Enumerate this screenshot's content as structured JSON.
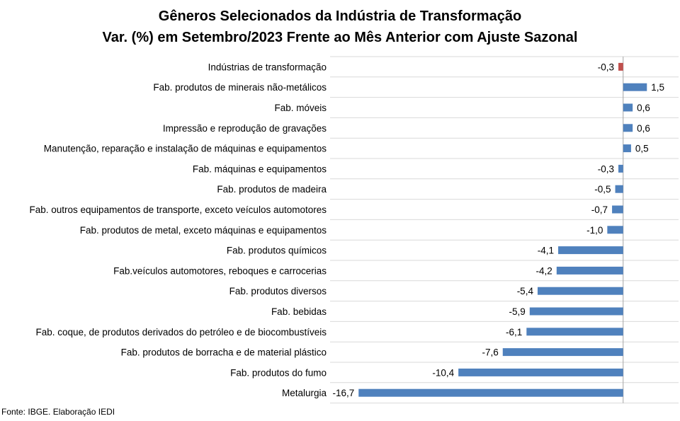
{
  "chart_data": {
    "type": "bar",
    "orientation": "horizontal",
    "title": "Gêneros Selecionados da Indústria de Transformação",
    "subtitle": "Var. (%) em Setembro/2023 Frente ao Mês Anterior com Ajuste Sazonal",
    "categories": [
      "Indústrias de transformação",
      "Fab. produtos de minerais não-metálicos",
      "Fab. móveis",
      "Impressão e reprodução de gravações",
      "Manutenção, reparação e instalação de máquinas e equipamentos",
      "Fab. máquinas e equipamentos",
      "Fab. produtos de madeira",
      "Fab. outros equipamentos de transporte, exceto veículos automotores",
      "Fab. produtos de metal, exceto máquinas e equipamentos",
      "Fab. produtos químicos",
      "Fab.veículos automotores, reboques e carrocerias",
      "Fab. produtos diversos",
      "Fab. bebidas",
      "Fab. coque, de produtos derivados do petróleo e de biocombustíveis",
      "Fab. produtos de borracha e de material plástico",
      "Fab. produtos do fumo",
      "Metalurgia"
    ],
    "values": [
      -0.3,
      1.5,
      0.6,
      0.6,
      0.5,
      -0.3,
      -0.5,
      -0.7,
      -1.0,
      -4.1,
      -4.2,
      -5.4,
      -5.9,
      -6.1,
      -7.6,
      -10.4,
      -16.7
    ],
    "labels": [
      "-0,3",
      "1,5",
      "0,6",
      "0,6",
      "0,5",
      "-0,3",
      "-0,5",
      "-0,7",
      "-1,0",
      "-4,1",
      "-4,2",
      "-5,4",
      "-5,9",
      "-6,1",
      "-7,6",
      "-10,4",
      "-16,7"
    ],
    "highlight_index": 0,
    "colors": {
      "bar": "#4F81BD",
      "highlight": "#C0504D",
      "grid": "#D9D9D9",
      "axis": "#A6A6A6"
    },
    "xlim": [
      -18.5,
      3.5
    ],
    "grid": true
  },
  "source": "Fonte: IBGE. Elaboração IEDI"
}
